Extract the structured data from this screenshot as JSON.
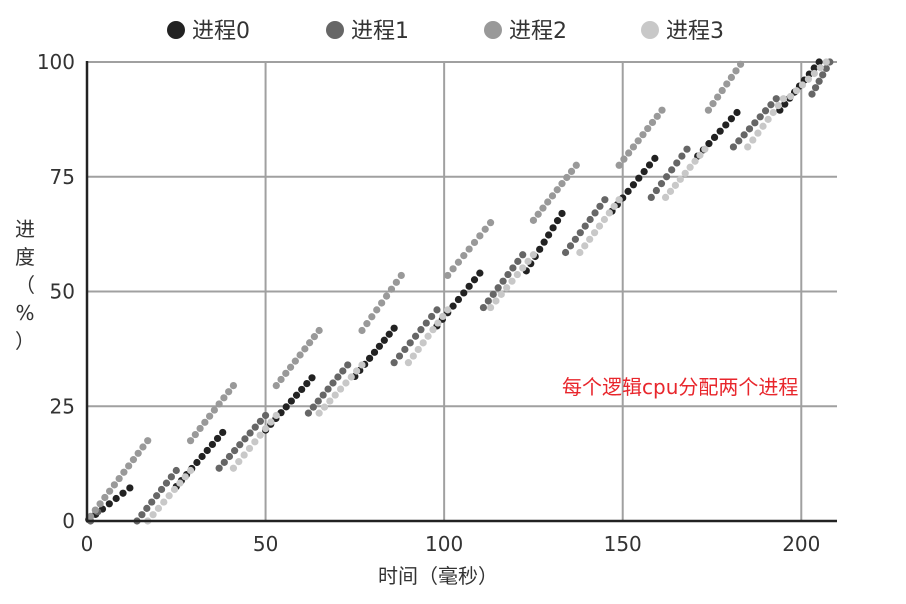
{
  "chart_data": {
    "type": "scatter",
    "title": "",
    "xlabel": "时间（毫秒）",
    "ylabel": [
      "进",
      "度",
      "（",
      "%",
      "）"
    ],
    "xlim": [
      0,
      210
    ],
    "ylim": [
      0,
      100
    ],
    "xticks": [
      0,
      50,
      100,
      150,
      200
    ],
    "yticks": [
      0,
      25,
      50,
      75,
      100
    ],
    "grid": true,
    "legend_position": "top",
    "annotation": "每个逻辑cpu分配两个进程",
    "series": [
      {
        "name": "进程0",
        "color": "#222222",
        "segments": [
          [
            0.5,
            0.3,
            12,
            7.2
          ],
          [
            25,
            7.5,
            38,
            19.3
          ],
          [
            50,
            19.8,
            63,
            31.2
          ],
          [
            75,
            31.5,
            86,
            42
          ],
          [
            98,
            42.5,
            110,
            54
          ],
          [
            123,
            54.5,
            133,
            67
          ],
          [
            147,
            67.5,
            159,
            79
          ],
          [
            171,
            79.5,
            182,
            89
          ],
          [
            194,
            89.5,
            205,
            100
          ]
        ]
      },
      {
        "name": "进程1",
        "color": "#666666",
        "segments": [
          [
            1,
            0,
            3,
            2
          ],
          [
            14,
            0,
            25,
            11
          ],
          [
            37,
            11.5,
            50,
            23
          ],
          [
            62,
            23.5,
            73,
            34
          ],
          [
            86,
            34.5,
            98,
            46
          ],
          [
            111,
            46.5,
            122,
            58
          ],
          [
            134,
            58.5,
            145,
            70
          ],
          [
            158,
            70.5,
            168,
            81
          ],
          [
            181,
            81.5,
            193,
            92
          ],
          [
            203,
            93,
            208,
            100
          ]
        ]
      },
      {
        "name": "进程2",
        "color": "#999999",
        "segments": [
          [
            1,
            1,
            17,
            17.5
          ],
          [
            29,
            17.5,
            41,
            29.5
          ],
          [
            53,
            29.5,
            65,
            41.5
          ],
          [
            77,
            41.5,
            88,
            53.5
          ],
          [
            101,
            53.5,
            113,
            65
          ],
          [
            125,
            65.5,
            137,
            77.5
          ],
          [
            149,
            77.5,
            161,
            89.5
          ],
          [
            174,
            89.5,
            183,
            99.5
          ]
        ]
      },
      {
        "name": "进程3",
        "color": "#c8c8c8",
        "segments": [
          [
            17,
            0,
            29,
            11
          ],
          [
            41,
            11.5,
            53,
            23
          ],
          [
            65,
            23.5,
            77,
            34
          ],
          [
            90,
            34.5,
            101,
            46
          ],
          [
            113,
            46.5,
            125,
            58
          ],
          [
            138,
            58.5,
            149,
            70
          ],
          [
            162,
            70.5,
            173,
            81
          ],
          [
            185,
            81.5,
            195,
            92
          ],
          [
            197,
            92.5,
            207,
            100
          ]
        ]
      }
    ]
  }
}
